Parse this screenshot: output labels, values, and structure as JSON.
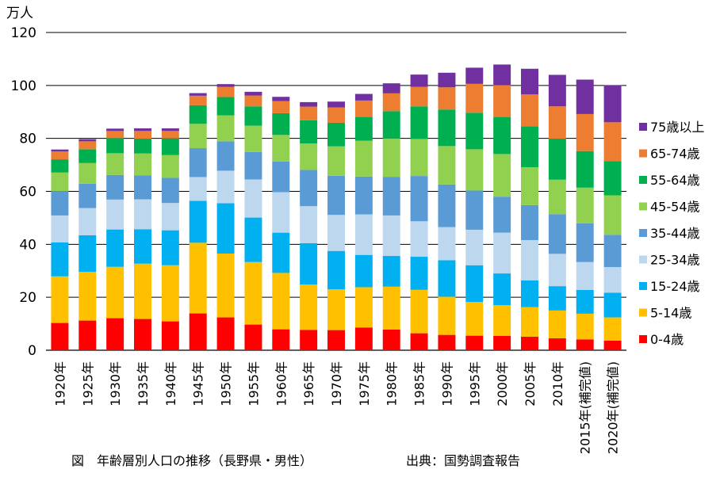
{
  "chart_data": {
    "type": "bar",
    "stacked": true,
    "unit_label": "万人",
    "ylim": [
      0,
      120
    ],
    "yticks": [
      0,
      20,
      40,
      60,
      80,
      100,
      120
    ],
    "grid": true,
    "legend_position": "right",
    "categories": [
      "1920年",
      "1925年",
      "1930年",
      "1935年",
      "1940年",
      "1945年",
      "1950年",
      "1955年",
      "1960年",
      "1965年",
      "1970年",
      "1975年",
      "1980年",
      "1985年",
      "1990年",
      "1995年",
      "2000年",
      "2005年",
      "2010年",
      "2015年(補完値)",
      "2020年(補完値)"
    ],
    "series": [
      {
        "name": "0-4歳",
        "color": "#ff0000",
        "values": [
          10.3,
          11.2,
          12.1,
          11.8,
          10.9,
          13.9,
          12.4,
          9.7,
          7.9,
          7.7,
          7.6,
          8.6,
          7.8,
          6.4,
          5.8,
          5.5,
          5.4,
          5.1,
          4.5,
          4.1,
          3.6
        ]
      },
      {
        "name": "5-14歳",
        "color": "#ffc000",
        "values": [
          17.6,
          18.4,
          19.4,
          20.9,
          21.2,
          26.7,
          24.1,
          23.6,
          21.3,
          17.1,
          15.4,
          15.2,
          16.2,
          16.4,
          14.4,
          12.7,
          11.6,
          11.2,
          10.5,
          9.7,
          8.8
        ]
      },
      {
        "name": "15-24歳",
        "color": "#00b0f0",
        "values": [
          12.8,
          13.8,
          14.1,
          13.0,
          13.2,
          15.8,
          19.0,
          16.8,
          15.2,
          15.6,
          14.5,
          12.2,
          11.6,
          12.5,
          13.8,
          13.9,
          12.0,
          10.1,
          9.2,
          9.0,
          9.3
        ]
      },
      {
        "name": "25-34歳",
        "color": "#bdd7ee",
        "values": [
          10.2,
          10.3,
          11.3,
          11.3,
          10.3,
          9.0,
          12.3,
          14.4,
          15.3,
          14.0,
          13.6,
          15.3,
          15.3,
          13.4,
          12.5,
          13.4,
          15.4,
          15.2,
          12.2,
          10.5,
          9.7
        ]
      },
      {
        "name": "35-44歳",
        "color": "#5b9bd5",
        "values": [
          9.2,
          9.2,
          9.3,
          9.0,
          9.5,
          10.9,
          11.1,
          10.4,
          11.6,
          13.7,
          14.8,
          14.3,
          14.6,
          17.1,
          16.1,
          14.8,
          13.6,
          13.2,
          15.0,
          14.6,
          12.2
        ]
      },
      {
        "name": "45-54歳",
        "color": "#92d050",
        "values": [
          7.0,
          7.8,
          8.2,
          8.3,
          8.6,
          9.2,
          9.8,
          9.9,
          10.0,
          10.0,
          11.1,
          13.5,
          14.5,
          14.0,
          14.5,
          15.6,
          16.1,
          14.3,
          13.0,
          13.5,
          14.9
        ]
      },
      {
        "name": "55-64歳",
        "color": "#00b050",
        "values": [
          5.0,
          5.2,
          5.7,
          5.6,
          6.3,
          7.0,
          6.9,
          7.3,
          8.2,
          8.7,
          8.9,
          9.0,
          10.3,
          12.3,
          13.8,
          13.8,
          14.0,
          15.5,
          15.5,
          13.8,
          12.9
        ]
      },
      {
        "name": "65-74歳",
        "color": "#ed7d31",
        "values": [
          3.0,
          3.0,
          2.7,
          2.9,
          2.8,
          3.6,
          3.9,
          4.1,
          4.6,
          5.2,
          5.8,
          6.2,
          6.7,
          7.4,
          8.4,
          10.9,
          12.0,
          12.0,
          12.2,
          14.0,
          14.7
        ]
      },
      {
        "name": "75歳以上",
        "color": "#7030a0",
        "values": [
          0.7,
          0.8,
          0.9,
          1.0,
          1.0,
          1.0,
          1.0,
          1.4,
          1.6,
          1.7,
          2.2,
          2.5,
          3.8,
          4.6,
          5.5,
          6.1,
          7.8,
          9.7,
          11.9,
          13.0,
          14.0
        ]
      }
    ]
  },
  "caption": {
    "title": "図　年齢層別人口の推移（長野県・男性）",
    "source": "出典：国勢調査報告"
  }
}
